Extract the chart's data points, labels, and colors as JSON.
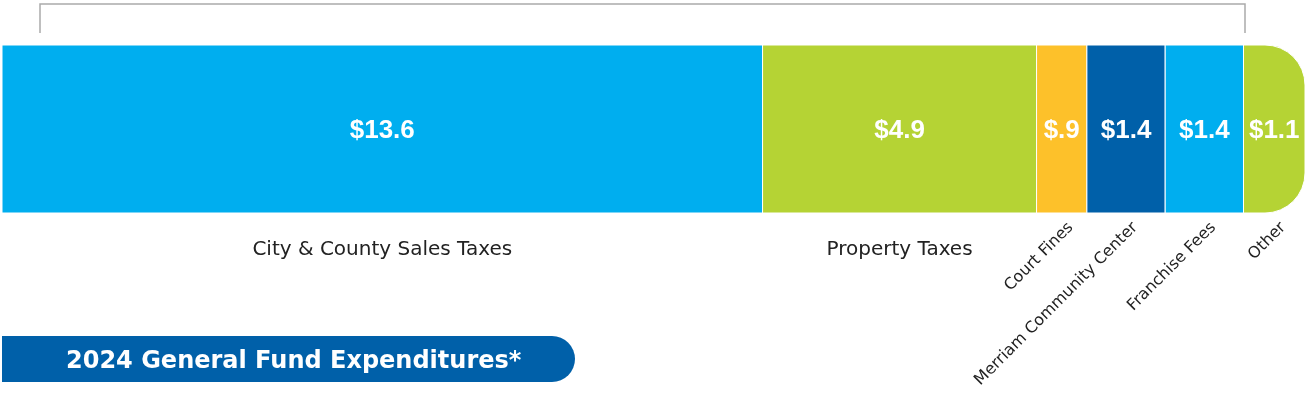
{
  "chart_data": {
    "type": "bar",
    "orientation": "horizontal",
    "stacked": true,
    "title": "2024 General Fund Expenditures*",
    "categories": [
      null
    ],
    "series": [
      {
        "name": "City & County Sales Taxes",
        "color": "#00aeef",
        "values": [
          13.6
        ],
        "value_labels": [
          "$13.6"
        ]
      },
      {
        "name": "Property Taxes",
        "color": "#b5d334",
        "values": [
          4.9
        ],
        "value_labels": [
          "$4.9"
        ]
      },
      {
        "name": "Court Fines",
        "color": "#fdc12a",
        "values": [
          0.9
        ],
        "value_labels": [
          "$.9"
        ]
      },
      {
        "name": "Merriam Community Center",
        "color": "#0060a9",
        "values": [
          1.4
        ],
        "value_labels": [
          "$1.4"
        ]
      },
      {
        "name": "Franchise Fees",
        "color": "#00aeef",
        "values": [
          1.4
        ],
        "value_labels": [
          "$1.4"
        ]
      },
      {
        "name": "Other",
        "color": "#b5d334",
        "values": [
          1.1
        ],
        "value_labels": [
          "$1.1"
        ]
      }
    ]
  }
}
